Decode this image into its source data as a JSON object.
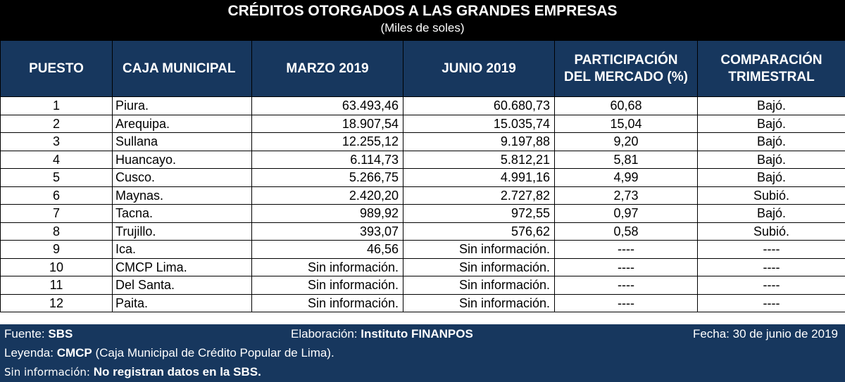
{
  "title": "CRÉDITOS OTORGADOS A LAS GRANDES EMPRESAS",
  "subtitle": "(Miles de soles)",
  "columns": {
    "puesto": "PUESTO",
    "caja": "CAJA MUNICIPAL",
    "marzo": "MARZO 2019",
    "junio": "JUNIO 2019",
    "participacion_1": "PARTICIPACIÓN",
    "participacion_2": "DEL MERCADO (%)",
    "comparacion_1": "COMPARACIÓN",
    "comparacion_2": "TRIMESTRAL"
  },
  "rows": [
    {
      "puesto": "1",
      "caja": "Piura.",
      "marzo": "63.493,46",
      "junio": "60.680,73",
      "participacion": "60,68",
      "comparacion": "Bajó."
    },
    {
      "puesto": "2",
      "caja": "Arequipa.",
      "marzo": "18.907,54",
      "junio": "15.035,74",
      "participacion": "15,04",
      "comparacion": "Bajó."
    },
    {
      "puesto": "3",
      "caja": "Sullana",
      "marzo": "12.255,12",
      "junio": "9.197,88",
      "participacion": "9,20",
      "comparacion": "Bajó."
    },
    {
      "puesto": "4",
      "caja": "Huancayo.",
      "marzo": "6.114,73",
      "junio": "5.812,21",
      "participacion": "5,81",
      "comparacion": "Bajó."
    },
    {
      "puesto": "5",
      "caja": "Cusco.",
      "marzo": "5.266,75",
      "junio": "4.991,16",
      "participacion": "4,99",
      "comparacion": "Bajó."
    },
    {
      "puesto": "6",
      "caja": "Maynas.",
      "marzo": "2.420,20",
      "junio": "2.727,82",
      "participacion": "2,73",
      "comparacion": "Subió."
    },
    {
      "puesto": "7",
      "caja": "Tacna.",
      "marzo": "989,92",
      "junio": "972,55",
      "participacion": "0,97",
      "comparacion": "Bajó."
    },
    {
      "puesto": "8",
      "caja": "Trujillo.",
      "marzo": "393,07",
      "junio": "576,62",
      "participacion": "0,58",
      "comparacion": "Subió."
    },
    {
      "puesto": "9",
      "caja": "Ica.",
      "marzo": "46,56",
      "junio": "Sin información.",
      "participacion": "----",
      "comparacion": "----"
    },
    {
      "puesto": "10",
      "caja": "CMCP Lima.",
      "marzo": "Sin información.",
      "junio": "Sin información.",
      "participacion": "----",
      "comparacion": "----"
    },
    {
      "puesto": "11",
      "caja": "Del Santa.",
      "marzo": "Sin información.",
      "junio": "Sin información.",
      "participacion": "----",
      "comparacion": "----"
    },
    {
      "puesto": "12",
      "caja": "Paita.",
      "marzo": "Sin información.",
      "junio": "Sin información.",
      "participacion": "----",
      "comparacion": "----"
    }
  ],
  "footer": {
    "fuente_label": "Fuente: ",
    "fuente_value": "SBS",
    "elaboracion_label": "Elaboración: ",
    "elaboracion_value": "Instituto FINANPOS",
    "fecha": "Fecha: 30 de junio de 2019",
    "leyenda_label": "Leyenda: ",
    "leyenda_value": "CMCP",
    "leyenda_text": " (Caja Municipal de Crédito Popular de Lima).",
    "sininfo_label": "Sin información: ",
    "sininfo_value": "No registran datos en la SBS."
  }
}
